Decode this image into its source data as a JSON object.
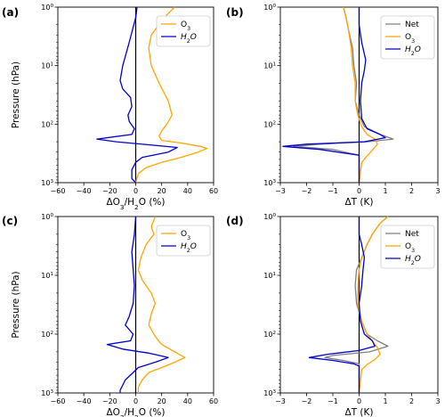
{
  "chart_data": [
    {
      "panel": "(a)",
      "type": "line",
      "xlabel": "ΔO3/H2O (%)",
      "ylabel": "Pressure (hPa)",
      "xlim": [
        -60,
        60
      ],
      "ylim_log": [
        1000,
        1
      ],
      "xticks": [
        "−60",
        "−40",
        "−20",
        "0",
        "20",
        "40",
        "60"
      ],
      "yticks": [
        "10^0",
        "10^1",
        "10^2",
        "10^3"
      ],
      "legend": {
        "position": "top-right",
        "entries": [
          "O3",
          "H2O"
        ]
      },
      "series": [
        {
          "name": "O3",
          "color": "#ffa500",
          "points": [
            [
              30,
              1
            ],
            [
              22,
              1.5
            ],
            [
              12,
              3
            ],
            [
              10,
              5
            ],
            [
              12,
              10
            ],
            [
              18,
              20
            ],
            [
              25,
              40
            ],
            [
              28,
              70
            ],
            [
              24,
              100
            ],
            [
              20,
              130
            ],
            [
              18,
              160
            ],
            [
              20,
              190
            ],
            [
              35,
              210
            ],
            [
              50,
              240
            ],
            [
              55,
              260
            ],
            [
              48,
              300
            ],
            [
              35,
              370
            ],
            [
              20,
              450
            ],
            [
              8,
              550
            ],
            [
              2,
              700
            ],
            [
              0,
              1000
            ]
          ]
        },
        {
          "name": "H2O",
          "color": "#0000cd",
          "points": [
            [
              1,
              1
            ],
            [
              0,
              1.5
            ],
            [
              -5,
              4
            ],
            [
              -10,
              10
            ],
            [
              -12,
              18
            ],
            [
              -10,
              25
            ],
            [
              -4,
              35
            ],
            [
              -3,
              50
            ],
            [
              -6,
              70
            ],
            [
              -5,
              90
            ],
            [
              -1,
              120
            ],
            [
              -3,
              150
            ],
            [
              -30,
              180
            ],
            [
              -15,
              200
            ],
            [
              10,
              225
            ],
            [
              32,
              250
            ],
            [
              25,
              300
            ],
            [
              5,
              370
            ],
            [
              0,
              450
            ],
            [
              -3,
              600
            ],
            [
              -3,
              850
            ],
            [
              0,
              1000
            ]
          ]
        }
      ]
    },
    {
      "panel": "(b)",
      "type": "line",
      "xlabel": "ΔT (K)",
      "xlim": [
        -3,
        3
      ],
      "ylim_log": [
        1000,
        1
      ],
      "xticks": [
        "−3",
        "−2",
        "−1",
        "0",
        "1",
        "2",
        "3"
      ],
      "yticks": [
        "10^0",
        "10^1",
        "10^2",
        "10^3"
      ],
      "legend": {
        "position": "top-right",
        "entries": [
          "Net",
          "O3",
          "H2O"
        ]
      },
      "series": [
        {
          "name": "Net",
          "color": "#808080",
          "points": [
            [
              -0.6,
              1
            ],
            [
              -0.5,
              1.5
            ],
            [
              -0.4,
              2.5
            ],
            [
              -0.25,
              5
            ],
            [
              -0.2,
              10
            ],
            [
              -0.1,
              20
            ],
            [
              -0.15,
              40
            ],
            [
              0.0,
              70
            ],
            [
              0.2,
              110
            ],
            [
              0.8,
              150
            ],
            [
              1.3,
              180
            ],
            [
              0.3,
              200
            ],
            [
              -1.5,
              220
            ],
            [
              -2.5,
              240
            ],
            [
              -1.0,
              270
            ],
            [
              0.0,
              340
            ],
            [
              0.0,
              1000
            ]
          ]
        },
        {
          "name": "O3",
          "color": "#ffa500",
          "points": [
            [
              -0.6,
              1
            ],
            [
              -0.5,
              1.5
            ],
            [
              -0.4,
              2.5
            ],
            [
              -0.3,
              5
            ],
            [
              -0.25,
              10
            ],
            [
              -0.15,
              20
            ],
            [
              -0.15,
              40
            ],
            [
              -0.05,
              70
            ],
            [
              0.1,
              110
            ],
            [
              0.3,
              150
            ],
            [
              0.6,
              180
            ],
            [
              0.7,
              220
            ],
            [
              0.5,
              280
            ],
            [
              0.3,
              350
            ],
            [
              0.1,
              450
            ],
            [
              0.0,
              1000
            ]
          ]
        },
        {
          "name": "H2O",
          "color": "#0000cd",
          "points": [
            [
              0.0,
              1
            ],
            [
              0.0,
              2
            ],
            [
              0.1,
              4
            ],
            [
              0.25,
              8
            ],
            [
              0.2,
              12
            ],
            [
              0.1,
              20
            ],
            [
              0.05,
              40
            ],
            [
              0.1,
              80
            ],
            [
              0.3,
              120
            ],
            [
              0.8,
              150
            ],
            [
              1.0,
              170
            ],
            [
              0.2,
              200
            ],
            [
              -2.0,
              220
            ],
            [
              -2.9,
              240
            ],
            [
              -1.5,
              270
            ],
            [
              -0.4,
              320
            ],
            [
              0.0,
              340
            ],
            [
              0.0,
              1000
            ]
          ]
        }
      ]
    },
    {
      "panel": "(c)",
      "type": "line",
      "xlabel": "ΔO3/H2O (%)",
      "ylabel": "Pressure (hPa)",
      "xlim": [
        -60,
        60
      ],
      "ylim_log": [
        1000,
        1
      ],
      "xticks": [
        "−60",
        "−40",
        "−20",
        "0",
        "20",
        "40",
        "60"
      ],
      "yticks": [
        "10^0",
        "10^1",
        "10^2",
        "10^3"
      ],
      "legend": {
        "position": "top-right",
        "entries": [
          "O3",
          "H2O"
        ]
      },
      "series": [
        {
          "name": "O3",
          "color": "#ffa500",
          "points": [
            [
              15,
              1
            ],
            [
              12,
              1.5
            ],
            [
              14,
              2
            ],
            [
              8,
              3
            ],
            [
              4,
              5
            ],
            [
              2,
              8
            ],
            [
              5,
              12
            ],
            [
              8,
              15
            ],
            [
              12,
              20
            ],
            [
              15,
              30
            ],
            [
              12,
              45
            ],
            [
              10,
              70
            ],
            [
              15,
              110
            ],
            [
              20,
              150
            ],
            [
              30,
              200
            ],
            [
              38,
              250
            ],
            [
              30,
              300
            ],
            [
              20,
              370
            ],
            [
              10,
              450
            ],
            [
              5,
              600
            ],
            [
              2,
              800
            ],
            [
              2,
              1000
            ]
          ]
        },
        {
          "name": "H2O",
          "color": "#0000cd",
          "points": [
            [
              0,
              1
            ],
            [
              -1,
              2
            ],
            [
              -3,
              4
            ],
            [
              -2,
              8
            ],
            [
              -1,
              15
            ],
            [
              -2,
              30
            ],
            [
              -5,
              50
            ],
            [
              -8,
              70
            ],
            [
              -2,
              100
            ],
            [
              -4,
              130
            ],
            [
              -22,
              150
            ],
            [
              -10,
              180
            ],
            [
              10,
              210
            ],
            [
              25,
              250
            ],
            [
              15,
              300
            ],
            [
              2,
              370
            ],
            [
              -2,
              450
            ],
            [
              -8,
              600
            ],
            [
              -12,
              900
            ],
            [
              -12,
              1000
            ]
          ]
        }
      ]
    },
    {
      "panel": "(d)",
      "type": "line",
      "xlabel": "ΔT (K)",
      "xlim": [
        -3,
        3
      ],
      "ylim_log": [
        1000,
        1
      ],
      "xticks": [
        "−3",
        "−2",
        "−1",
        "0",
        "1",
        "2",
        "3"
      ],
      "yticks": [
        "10^0",
        "10^1",
        "10^2",
        "10^3"
      ],
      "legend": {
        "position": "top-right",
        "entries": [
          "Net",
          "O3",
          "H2O"
        ]
      },
      "series": [
        {
          "name": "Net",
          "color": "#808080",
          "points": [
            [
              1.1,
              1
            ],
            [
              0.8,
              1.3
            ],
            [
              0.5,
              2
            ],
            [
              0.3,
              3
            ],
            [
              0.1,
              5
            ],
            [
              -0.1,
              8
            ],
            [
              -0.15,
              15
            ],
            [
              -0.1,
              30
            ],
            [
              0.1,
              60
            ],
            [
              0.3,
              100
            ],
            [
              0.7,
              130
            ],
            [
              1.1,
              160
            ],
            [
              0.4,
              200
            ],
            [
              -1.0,
              230
            ],
            [
              -1.3,
              250
            ],
            [
              -0.6,
              280
            ],
            [
              0.0,
              320
            ],
            [
              0.0,
              1000
            ]
          ]
        },
        {
          "name": "O3",
          "color": "#ffa500",
          "points": [
            [
              1.1,
              1
            ],
            [
              0.8,
              1.3
            ],
            [
              0.5,
              2
            ],
            [
              0.3,
              3
            ],
            [
              0.1,
              5
            ],
            [
              0.0,
              8
            ],
            [
              -0.05,
              15
            ],
            [
              -0.05,
              30
            ],
            [
              0.1,
              60
            ],
            [
              0.3,
              100
            ],
            [
              0.5,
              130
            ],
            [
              0.7,
              170
            ],
            [
              0.8,
              220
            ],
            [
              0.6,
              270
            ],
            [
              0.3,
              330
            ],
            [
              0.1,
              400
            ],
            [
              0.0,
              1000
            ]
          ]
        },
        {
          "name": "H2O",
          "color": "#0000cd",
          "points": [
            [
              0.0,
              1
            ],
            [
              0.0,
              2
            ],
            [
              0.1,
              3
            ],
            [
              0.2,
              5
            ],
            [
              0.15,
              8
            ],
            [
              0.1,
              15
            ],
            [
              0.0,
              30
            ],
            [
              0.05,
              60
            ],
            [
              0.2,
              100
            ],
            [
              0.5,
              130
            ],
            [
              0.6,
              160
            ],
            [
              0.0,
              190
            ],
            [
              -1.2,
              220
            ],
            [
              -1.9,
              250
            ],
            [
              -1.0,
              280
            ],
            [
              -0.2,
              320
            ],
            [
              0.0,
              350
            ],
            [
              0.0,
              1000
            ]
          ]
        }
      ]
    }
  ]
}
